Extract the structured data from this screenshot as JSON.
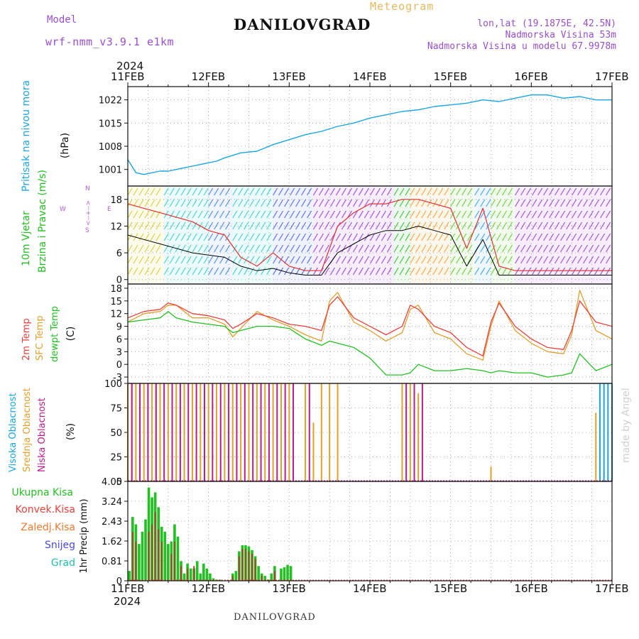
{
  "header": {
    "model_label": "Model",
    "model_name": "wrf-nmm_v3.9.1 e1km",
    "meteogram_label": "Meteogram",
    "location": "DANILOVGRAD",
    "lonlat": "lon,lat (19.1875E, 42.5N)",
    "altitude": "Nadmorska Visina 53m",
    "model_altitude": "Nadmorska Visina u modelu 67.9978m",
    "footer_location": "DANILOVGRAD",
    "credit": "made by Angel"
  },
  "axis": {
    "year": "2024",
    "days": [
      "11FEB",
      "12FEB",
      "13FEB",
      "14FEB",
      "15FEB",
      "16FEB",
      "17FEB"
    ]
  },
  "colors": {
    "pressure": "#1aa6e0",
    "temp": "#e8413c",
    "sfc_temp": "#e0a030",
    "dewpt": "#22c022",
    "wind_speed": "#000000",
    "wind_gust": "#e03030",
    "high_cloud": "#1aa6e0",
    "mid_cloud": "#dfa22a",
    "low_cloud": "#c01a8c",
    "total_precip": "#22c022",
    "conv_precip": "#e8413c",
    "frozen_precip": "#ef7a30",
    "snow": "#4a4ae0",
    "hail": "#22c0b0",
    "wind_label": "#22c022",
    "compass": "#b85cd6",
    "model_text": "#9b4fcf"
  },
  "chart_data": [
    {
      "type": "line",
      "title": "Pritisak na nivou mora",
      "ylabel": "(hPa)",
      "ylim": [
        996,
        1026
      ],
      "yticks": [
        "1001",
        "1008",
        "1015",
        "1022"
      ],
      "x": [
        0,
        0.1,
        0.2,
        0.3,
        0.4,
        0.5,
        0.6,
        0.7,
        0.8,
        0.9,
        1.0,
        1.1,
        1.2,
        1.4,
        1.6,
        1.8,
        2.0,
        2.2,
        2.4,
        2.6,
        2.8,
        3.0,
        3.2,
        3.4,
        3.6,
        3.8,
        4.0,
        4.2,
        4.4,
        4.6,
        4.8,
        5.0,
        5.2,
        5.4,
        5.6,
        5.8,
        6.0
      ],
      "series": [
        {
          "values": [
            1004,
            1000,
            999.5,
            1000,
            1000.5,
            1000.5,
            1001,
            1001.5,
            1002,
            1002.5,
            1003,
            1003.5,
            1004.5,
            1006,
            1006.5,
            1008.5,
            1010,
            1011.5,
            1012.5,
            1014,
            1015,
            1016.5,
            1017.5,
            1018.5,
            1019,
            1020,
            1020.5,
            1021,
            1022,
            1021.5,
            1022.5,
            1023.5,
            1023.5,
            1022.5,
            1023,
            1022,
            1022
          ]
        }
      ]
    },
    {
      "type": "line",
      "title": "10m Vjetar",
      "ylabel": "Brzina i Pravac (m/s)",
      "ylim": [
        -1,
        21
      ],
      "yticks": [
        "0",
        "6",
        "12",
        "18"
      ],
      "compass": {
        "n": "N",
        "w": "W",
        "e": "E",
        "s": "S"
      },
      "x": [
        0,
        0.2,
        0.4,
        0.6,
        0.8,
        1.0,
        1.2,
        1.4,
        1.6,
        1.8,
        2.0,
        2.2,
        2.4,
        2.6,
        2.8,
        3.0,
        3.2,
        3.4,
        3.6,
        3.8,
        4.0,
        4.2,
        4.4,
        4.6,
        4.8,
        5.0,
        5.2,
        5.4,
        5.6,
        5.8,
        6.0
      ],
      "series": [
        {
          "name": "speed",
          "values": [
            10,
            9,
            8,
            7,
            6,
            5.5,
            5,
            3,
            2,
            2.5,
            1.5,
            1,
            1,
            6,
            8,
            10,
            11,
            11,
            12,
            11,
            10,
            3,
            9,
            1,
            1,
            1,
            1,
            1,
            1,
            1,
            1
          ]
        },
        {
          "name": "gust",
          "values": [
            17,
            16,
            15,
            14,
            13,
            11,
            10,
            5,
            3,
            6,
            3,
            2,
            2,
            12,
            15,
            17,
            17,
            18,
            18,
            17,
            16,
            7,
            16,
            3,
            2,
            2,
            2,
            2,
            2,
            2,
            2
          ]
        }
      ],
      "direction_segments": [
        {
          "start": 0.0,
          "end": 0.45,
          "color": "#d8c81a"
        },
        {
          "start": 0.45,
          "end": 1.0,
          "color": "#28cdd0"
        },
        {
          "start": 1.0,
          "end": 1.3,
          "color": "#3a7cf0"
        },
        {
          "start": 1.3,
          "end": 1.8,
          "color": "#28cdd0"
        },
        {
          "start": 1.8,
          "end": 2.3,
          "color": "#3a5cf0"
        },
        {
          "start": 2.3,
          "end": 3.3,
          "color": "#9b30e0"
        },
        {
          "start": 3.3,
          "end": 3.5,
          "color": "#22c022"
        },
        {
          "start": 3.5,
          "end": 4.0,
          "color": "#f09a20"
        },
        {
          "start": 4.0,
          "end": 4.3,
          "color": "#5ad020"
        },
        {
          "start": 4.3,
          "end": 4.5,
          "color": "#28a0f0"
        },
        {
          "start": 4.5,
          "end": 4.8,
          "color": "#5ad020"
        },
        {
          "start": 4.8,
          "end": 6.0,
          "color": "#9b30e0"
        }
      ]
    },
    {
      "type": "line",
      "title": "2m Temp",
      "ylabel": "(C)",
      "ylim": [
        -4.5,
        19
      ],
      "yticks": [
        "-3",
        "0",
        "3",
        "6",
        "9",
        "12",
        "15",
        "18"
      ],
      "legend": [
        "2m Temp",
        "SFC Temp",
        "dewpt Temp"
      ],
      "x": [
        0,
        0.2,
        0.4,
        0.5,
        0.6,
        0.8,
        1.0,
        1.2,
        1.3,
        1.4,
        1.6,
        1.8,
        2.0,
        2.2,
        2.4,
        2.5,
        2.6,
        2.8,
        3.0,
        3.2,
        3.4,
        3.5,
        3.6,
        3.8,
        4.0,
        4.2,
        4.4,
        4.5,
        4.6,
        4.8,
        5.0,
        5.2,
        5.4,
        5.5,
        5.6,
        5.8,
        6.0
      ],
      "series": [
        {
          "name": "2m Temp",
          "values": [
            11,
            12.5,
            13,
            14.5,
            14,
            12,
            11.5,
            10.5,
            8.5,
            9.5,
            12,
            11,
            9.5,
            9,
            8,
            14,
            16,
            11,
            9,
            7,
            9,
            14,
            13,
            9,
            7.5,
            4,
            2,
            10,
            14.5,
            9,
            6,
            4,
            3.5,
            8,
            15,
            10,
            9
          ]
        },
        {
          "name": "SFC Temp",
          "values": [
            10,
            12,
            12.5,
            14,
            14,
            11,
            11,
            9.5,
            6.5,
            8.5,
            12.5,
            10.5,
            9,
            7,
            5.5,
            15,
            17,
            10,
            8,
            5.5,
            7.5,
            13,
            14,
            7.5,
            6,
            2.5,
            1,
            9,
            15,
            8,
            5,
            3,
            2.5,
            7,
            17.5,
            8,
            6
          ]
        },
        {
          "name": "dewpt Temp",
          "values": [
            10,
            10.5,
            11,
            12.5,
            11,
            10,
            9.5,
            9,
            7.5,
            8,
            9,
            9,
            8.5,
            6,
            4.5,
            5.5,
            5,
            4,
            1.5,
            -2.5,
            -2.5,
            -2,
            0,
            -1.5,
            -1.5,
            -1,
            -1.5,
            -2,
            -1.5,
            -2,
            -2,
            -3,
            -2.5,
            -2,
            2.5,
            -1.5,
            0
          ]
        }
      ]
    },
    {
      "type": "bar",
      "title": "Oblacnost",
      "ylabel": "(%)",
      "ylim": [
        0,
        100
      ],
      "yticks": [
        "0",
        "25",
        "50",
        "75",
        "100"
      ],
      "legend": [
        "Visoka Oblacnost",
        "Srednja Oblacnost",
        "Niska Oblacnost"
      ],
      "series": [
        {
          "name": "Srednja Oblacnost",
          "x": [
            0,
            0.05,
            0.1,
            0.15,
            0.2,
            0.25,
            0.3,
            0.35,
            0.4,
            0.5,
            0.6,
            0.7,
            0.8,
            0.9,
            1.0,
            1.1,
            1.2,
            1.3,
            1.4,
            1.5,
            1.6,
            1.7,
            1.8,
            1.9,
            2.0,
            2.2,
            2.3,
            2.4,
            2.5,
            2.6,
            3.4,
            3.5,
            3.6,
            4.5,
            5.8,
            5.9
          ],
          "values": [
            100,
            100,
            100,
            100,
            100,
            100,
            100,
            100,
            100,
            100,
            100,
            100,
            100,
            100,
            100,
            100,
            100,
            100,
            100,
            100,
            100,
            100,
            100,
            100,
            100,
            100,
            60,
            100,
            100,
            100,
            100,
            100,
            90,
            15,
            70,
            10
          ]
        },
        {
          "name": "Niska Oblacnost",
          "x": [
            0.05,
            0.15,
            0.25,
            0.35,
            0.45,
            0.55,
            0.65,
            0.75,
            0.85,
            0.95,
            1.05,
            1.15,
            1.25,
            1.35,
            1.45,
            1.55,
            1.65,
            1.75,
            1.85,
            1.95,
            2.05,
            2.25,
            3.45,
            3.55,
            3.65
          ],
          "values": [
            100,
            100,
            100,
            100,
            100,
            100,
            100,
            100,
            100,
            100,
            100,
            100,
            100,
            100,
            100,
            100,
            100,
            100,
            100,
            100,
            100,
            100,
            100,
            100,
            100
          ]
        },
        {
          "name": "Visoka Oblacnost",
          "x": [
            5.85,
            5.9,
            5.95,
            6.0
          ],
          "values": [
            100,
            100,
            100,
            100
          ]
        }
      ]
    },
    {
      "type": "bar",
      "title": "1hr Precip",
      "ylabel": "1hr Precip (mm)",
      "ylim": [
        0,
        4.05
      ],
      "yticks": [
        "0",
        "0.81",
        "1.62",
        "2.43",
        "3.24",
        "4.05"
      ],
      "legend": [
        "Ukupna Kisa",
        "Konvek.Kisa",
        "Zaledj.Kisa",
        "Snijeg",
        "Grad"
      ],
      "series": [
        {
          "name": "Ukupna Kisa",
          "x": [
            0.02,
            0.06,
            0.1,
            0.14,
            0.18,
            0.22,
            0.26,
            0.3,
            0.34,
            0.38,
            0.42,
            0.46,
            0.5,
            0.54,
            0.58,
            0.62,
            0.66,
            0.7,
            0.74,
            0.78,
            0.82,
            0.86,
            0.9,
            0.94,
            0.98,
            1.02,
            1.06,
            1.1,
            1.14,
            1.3,
            1.34,
            1.38,
            1.42,
            1.46,
            1.5,
            1.54,
            1.58,
            1.62,
            1.66,
            1.7,
            1.74,
            1.78,
            1.82,
            1.9,
            1.94,
            1.98,
            2.02
          ],
          "values": [
            0.4,
            2.6,
            2.3,
            1.5,
            2.0,
            2.5,
            3.8,
            3.4,
            3.6,
            3.0,
            2.2,
            2.0,
            1.5,
            1.6,
            2.3,
            1.8,
            0.8,
            0.3,
            0.7,
            0.5,
            0.5,
            0.8,
            0.3,
            0.7,
            0.5,
            0.3,
            0.1,
            0.05,
            0.05,
            0.3,
            0.4,
            1.2,
            1.45,
            1.45,
            1.4,
            1.25,
            1.0,
            0.6,
            0.3,
            0.2,
            0.05,
            0.3,
            0.6,
            0.5,
            0.55,
            0.65,
            0.6
          ]
        },
        {
          "name": "Konvek.Kisa",
          "x": [
            0.06,
            0.1,
            0.26,
            0.3,
            0.34,
            0.38,
            0.42,
            0.54,
            0.58,
            0.66,
            0.74,
            0.82,
            1.3,
            1.38,
            1.42,
            1.46,
            1.5,
            1.54,
            1.58,
            1.66,
            1.74,
            1.82,
            1.94,
            2.02
          ],
          "values": [
            2.0,
            1.6,
            2.0,
            2.3,
            2.8,
            2.1,
            1.6,
            1.1,
            1.6,
            0.6,
            0.5,
            0.6,
            0.2,
            1.0,
            1.3,
            1.3,
            1.2,
            1.1,
            0.9,
            0.2,
            0.05,
            0.4,
            0.05,
            0.05
          ]
        }
      ]
    }
  ]
}
